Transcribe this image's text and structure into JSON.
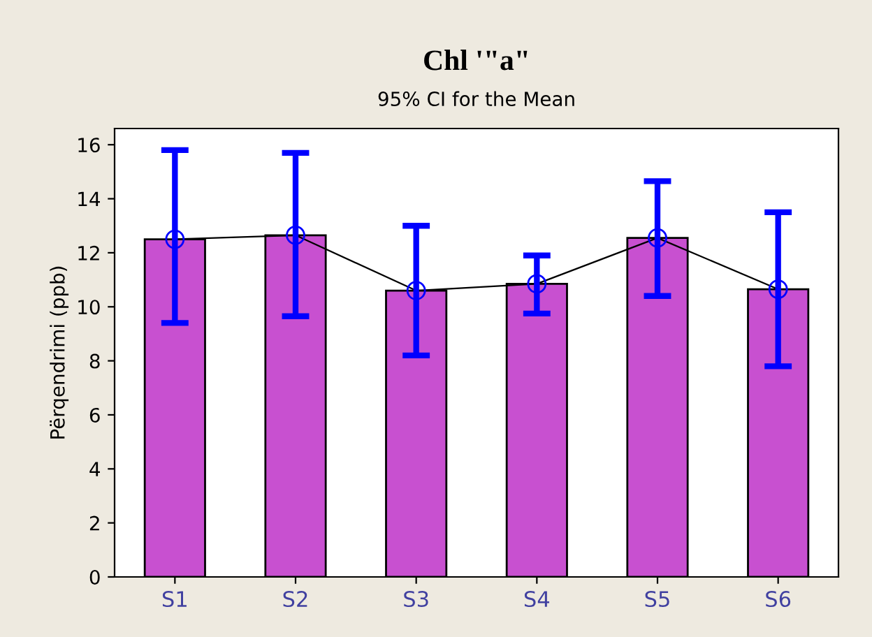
{
  "chart_data": {
    "type": "bar",
    "title": "Chl '\"a\"",
    "subtitle": "95% CI for the Mean",
    "ylabel": "Përqendrimi (ppb)",
    "categories": [
      "S1",
      "S2",
      "S3",
      "S4",
      "S5",
      "S6"
    ],
    "series": [
      {
        "color": "#c850d0",
        "values": [
          12.5,
          12.65,
          10.6,
          10.85,
          12.55,
          10.65
        ]
      },
      {
        "type": "line",
        "color": "#0000ff",
        "values": [
          12.5,
          12.65,
          10.6,
          10.85,
          12.55,
          10.65
        ],
        "errors": [
          [
            9.4,
            15.8
          ],
          [
            9.65,
            15.7
          ],
          [
            8.2,
            13.0
          ],
          [
            9.75,
            11.9
          ],
          [
            10.4,
            14.65
          ],
          [
            7.8,
            13.5
          ]
        ]
      }
    ],
    "marker": "circle",
    "ylim": [
      0,
      16.6
    ],
    "yticks": [
      0,
      2,
      4,
      6,
      8,
      10,
      12,
      14,
      16
    ],
    "grid": false,
    "legend": false
  }
}
